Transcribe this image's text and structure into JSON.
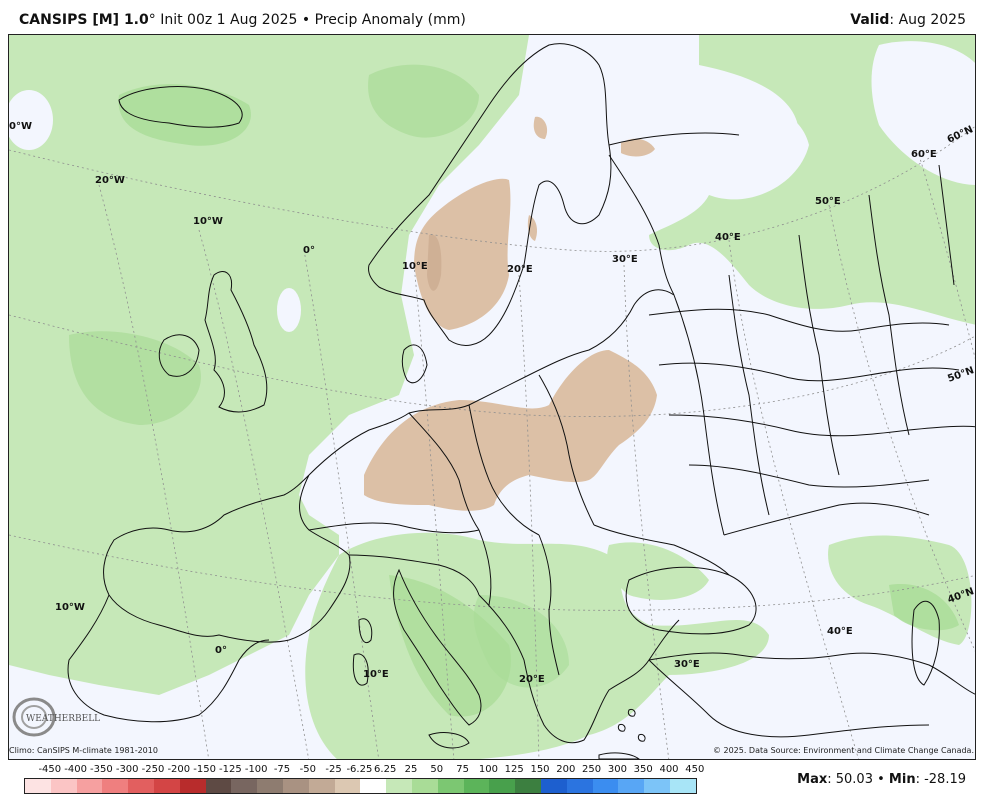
{
  "header": {
    "model": "CANSIPS [M] 1.0",
    "deg": "°",
    "init": " Init 00z 1 Aug 2025",
    "bullet": " • ",
    "field": "Precip Anomaly (mm)",
    "valid_label": "Valid",
    "valid_value": ": Aug 2025"
  },
  "map": {
    "ocean_color": "#f3f6fe",
    "land_wet_light": "#c6e8b8",
    "land_wet_mid": "#a9dc97",
    "dry_color": "#dcc0a6",
    "dry_dark": "#c7a58a",
    "graticule_labels": [
      {
        "text": "0°W",
        "lon": "0"
      },
      {
        "text": "20°W"
      },
      {
        "text": "10°W"
      },
      {
        "text": "0°"
      },
      {
        "text": "10°E"
      },
      {
        "text": "20°E"
      },
      {
        "text": "30°E"
      },
      {
        "text": "40°E"
      },
      {
        "text": "50°E"
      },
      {
        "text": "60°E"
      },
      {
        "text": "60°N"
      },
      {
        "text": "50°N"
      },
      {
        "text": "40°N"
      },
      {
        "text": "10°W"
      },
      {
        "text": "0°"
      },
      {
        "text": "10°E"
      },
      {
        "text": "20°E"
      },
      {
        "text": "30°E"
      },
      {
        "text": "40°E"
      }
    ]
  },
  "footer": {
    "climo": "Climo: CanSIPS M-climate 1981-2010",
    "credit": "© 2025. Data Source: Environment and Climate Change Canada.",
    "logo_text": "WEATHERBELL",
    "max_label": "Max",
    "max_value": ": 50.03",
    "sep": " • ",
    "min_label": "Min",
    "min_value": ": -28.19"
  },
  "colorbar": {
    "ticks": [
      "-450",
      "-400",
      "-350",
      "-300",
      "-250",
      "-200",
      "-150",
      "-125",
      "-100",
      "-75",
      "-50",
      "-25",
      "-6.25",
      "6.25",
      "25",
      "50",
      "75",
      "100",
      "125",
      "150",
      "200",
      "250",
      "300",
      "350",
      "400",
      "450"
    ],
    "colors": [
      "#fde3e3",
      "#fbc5c5",
      "#f6a0a0",
      "#ef7f7f",
      "#e25f5f",
      "#d34545",
      "#b82c2c",
      "#5e4a44",
      "#786660",
      "#8e7c70",
      "#a99282",
      "#c2aa96",
      "#dcc8b2",
      "#ffffff",
      "#c6e8b8",
      "#a9dc97",
      "#7cc772",
      "#5cb45a",
      "#48a04c",
      "#3c7f40",
      "#1d5fcf",
      "#2b74e0",
      "#3b8df0",
      "#58a6f5",
      "#7cc4f8",
      "#a8e5f7"
    ]
  }
}
